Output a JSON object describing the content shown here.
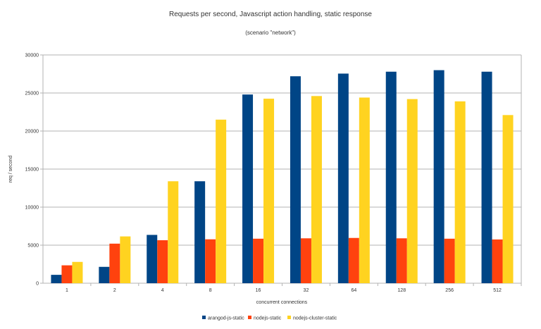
{
  "chart_data": {
    "type": "bar",
    "title": "Requests per second, Javascript action handling, static response",
    "subtitle": "(scenario \"network\")",
    "xlabel": "concurrent connections",
    "ylabel": "req / second",
    "ylim": [
      0,
      30000
    ],
    "yticks": [
      0,
      5000,
      10000,
      15000,
      20000,
      25000,
      30000
    ],
    "grid": true,
    "legend": "bottom",
    "categories": [
      "1",
      "2",
      "4",
      "8",
      "16",
      "32",
      "64",
      "128",
      "256",
      "512"
    ],
    "series": [
      {
        "name": "arangod-js-static",
        "color": "#004586",
        "values": [
          1100,
          2150,
          6350,
          13400,
          24800,
          27200,
          27550,
          27800,
          28000,
          27800
        ]
      },
      {
        "name": "nodejs-static",
        "color": "#ff420e",
        "values": [
          2350,
          5200,
          5650,
          5770,
          5850,
          5900,
          5950,
          5900,
          5850,
          5750
        ]
      },
      {
        "name": "nodejs-cluster-static",
        "color": "#ffd320",
        "values": [
          2800,
          6150,
          13400,
          21500,
          24250,
          24600,
          24400,
          24200,
          23900,
          22100
        ]
      }
    ]
  }
}
